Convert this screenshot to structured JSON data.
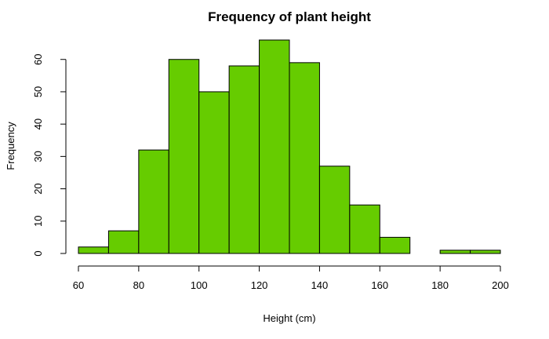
{
  "chart_data": {
    "type": "bar",
    "title": "Frequency of plant height",
    "xlabel": "Height (cm)",
    "ylabel": "Frequency",
    "bin_edges": [
      60,
      70,
      80,
      90,
      100,
      110,
      120,
      130,
      140,
      150,
      160,
      170,
      180,
      190,
      200
    ],
    "values": [
      2,
      7,
      32,
      60,
      50,
      58,
      66,
      59,
      27,
      15,
      5,
      0,
      1,
      1
    ],
    "xlim": [
      60,
      200
    ],
    "ylim": [
      0,
      66
    ],
    "x_ticks": [
      "60",
      "80",
      "100",
      "120",
      "140",
      "160",
      "180",
      "200"
    ],
    "y_ticks": [
      "0",
      "10",
      "20",
      "30",
      "40",
      "50",
      "60"
    ],
    "bar_color": "#66CC00",
    "grid": false,
    "legend": "none"
  }
}
